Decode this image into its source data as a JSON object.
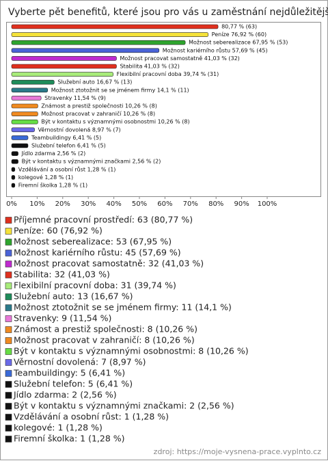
{
  "chart_data": {
    "type": "bar",
    "orientation": "horizontal",
    "title": "Vyberte pět benefitů, které jsou pro vás u zaměstnání nejdůležitější:",
    "values": [
      80.77,
      76.92,
      67.95,
      57.69,
      41.03,
      41.03,
      39.74,
      16.67,
      14.1,
      11.54,
      10.26,
      10.26,
      10.26,
      8.97,
      6.41,
      6.41,
      2.56,
      2.56,
      1.28,
      1.28,
      1.28
    ],
    "value_labels": [
      "80,77 % (63)",
      "Peníze 76,92 % (60)",
      "Možnost seberealizace 67,95 % (53)",
      "Možnost kariérního růstu 57,69 % (45)",
      "Možnost pracovat samostatně 41,03 % (32)",
      "Stabilita 41,03 % (32)",
      "Flexibilní pracovní doba 39,74 % (31)",
      "Služební auto 16,67 % (13)",
      "Možnost ztotožnit se se jménem firmy 14,1 % (11)",
      "Stravenky 11,54 % (9)",
      "Známost a prestiž společnosti 10,26 % (8)",
      "Možnost pracovat v zahraničí 10,26 % (8)",
      "Být v kontaktu s významnými osobnostmi 10,26 % (8)",
      "Věrnostní dovolená 8,97 % (7)",
      "Teambuildingy 6,41 % (5)",
      "Služební telefon 6,41 % (5)",
      "Jídlo zdarma 2,56 % (2)",
      "Být v kontaktu s významnými značkami 2,56 % (2)",
      "Vzdělávání a osobní růst 1,28 % (1)",
      "kolegové 1,28 % (1)",
      "Firemní školka 1,28 % (1)"
    ],
    "colors": [
      "#e0301e",
      "#f5e23a",
      "#2ea52e",
      "#4a63d8",
      "#c02ad0",
      "#e0301e",
      "#a8ec7a",
      "#1e8c5a",
      "#2a7a8a",
      "#e878d8",
      "#f08a20",
      "#f08a20",
      "#66dd44",
      "#6a6ae8",
      "#3a6ad8",
      "#111111",
      "#111111",
      "#111111",
      "#111111",
      "#111111",
      "#111111"
    ],
    "legend": [
      "Příjemné pracovní prostředí: 63 (80,77 %)",
      "Peníze: 60 (76,92 %)",
      "Možnost seberealizace: 53 (67,95 %)",
      "Možnost kariérního růstu: 45 (57,69 %)",
      "Možnost pracovat samostatně: 32 (41,03 %)",
      "Stabilita: 32 (41,03 %)",
      "Flexibilní pracovní doba: 31 (39,74 %)",
      "Služební auto: 13 (16,67 %)",
      "Možnost ztotožnit se se jménem firmy: 11 (14,1 %)",
      "Stravenky: 9 (11,54 %)",
      "Známost a prestiž společnosti: 8 (10,26 %)",
      "Možnost pracovat v zahraničí: 8 (10,26 %)",
      "Být v kontaktu s významnými osobnostmi: 8 (10,26 %)",
      "Věrnostní dovolená: 7 (8,97 %)",
      "Teambuildingy: 5 (6,41 %)",
      "Služební telefon: 5 (6,41 %)",
      "Jídlo zdarma: 2 (2,56 %)",
      "Být v kontaktu s významnými značkami: 2 (2,56 %)",
      "Vzdělávání a osobní růst: 1 (1,28 %)",
      "kolegové: 1 (1,28 %)",
      "Firemní školka: 1 (1,28 %)"
    ],
    "xlim": [
      0,
      100
    ],
    "xticks": [
      {
        "value": 0,
        "label": "0%"
      },
      {
        "value": 10,
        "label": "10%"
      },
      {
        "value": 20,
        "label": "20%"
      },
      {
        "value": 30,
        "label": "30%"
      },
      {
        "value": 40,
        "label": "40%"
      },
      {
        "value": 50,
        "label": "50%"
      },
      {
        "value": 60,
        "label": "60%"
      },
      {
        "value": 70,
        "label": "70%"
      },
      {
        "value": 80,
        "label": "80%"
      },
      {
        "value": 90,
        "label": "90%"
      },
      {
        "value": 100,
        "label": "100%"
      }
    ],
    "source": "zdroj: https://moje-vysnena-prace.vyplnto.cz"
  }
}
